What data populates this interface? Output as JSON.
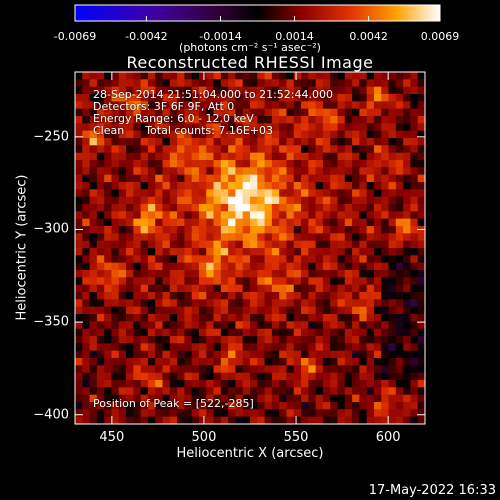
{
  "chart_data": {
    "type": "heatmap",
    "title": "Reconstructed RHESSI Image",
    "xlabel": "Heliocentric X (arcsec)",
    "ylabel": "Heliocentric Y (arcsec)",
    "xlim": [
      430,
      620
    ],
    "ylim": [
      -405,
      -215
    ],
    "x_ticks": [
      "450",
      "500",
      "550",
      "600"
    ],
    "x_tick_values": [
      450,
      500,
      550,
      600
    ],
    "y_ticks": [
      "-250",
      "-300",
      "-350",
      "-400"
    ],
    "y_tick_values": [
      -250,
      -300,
      -350,
      -400
    ],
    "colorbar": {
      "min": -0.0069,
      "max": 0.0069,
      "tick_labels": [
        "-0.0069",
        "-0.0042",
        "-0.0014",
        "0.0014",
        "0.0042",
        "0.0069"
      ],
      "tick_values": [
        -0.0069,
        -0.0042,
        -0.0014,
        0.0014,
        0.0042,
        0.0069
      ],
      "units": "(photons cm⁻² s⁻¹ asec⁻²)"
    },
    "peak": [
      522,
      -285
    ],
    "info_lines": [
      "28-Sep-2014 21:51:04.000 to 21:52:44.000",
      "Detectors: 3F 6F 9F, Att 0",
      "Energy Range: 6.0 - 12.0 keV",
      "Clean      Total counts: 7.16E+03"
    ],
    "peak_label": "Position of Peak = [522,-285]"
  },
  "footer": {
    "timestamp": "17-May-2022 16:33"
  },
  "colors": {
    "background": "#000000",
    "text": "#ffffff"
  }
}
